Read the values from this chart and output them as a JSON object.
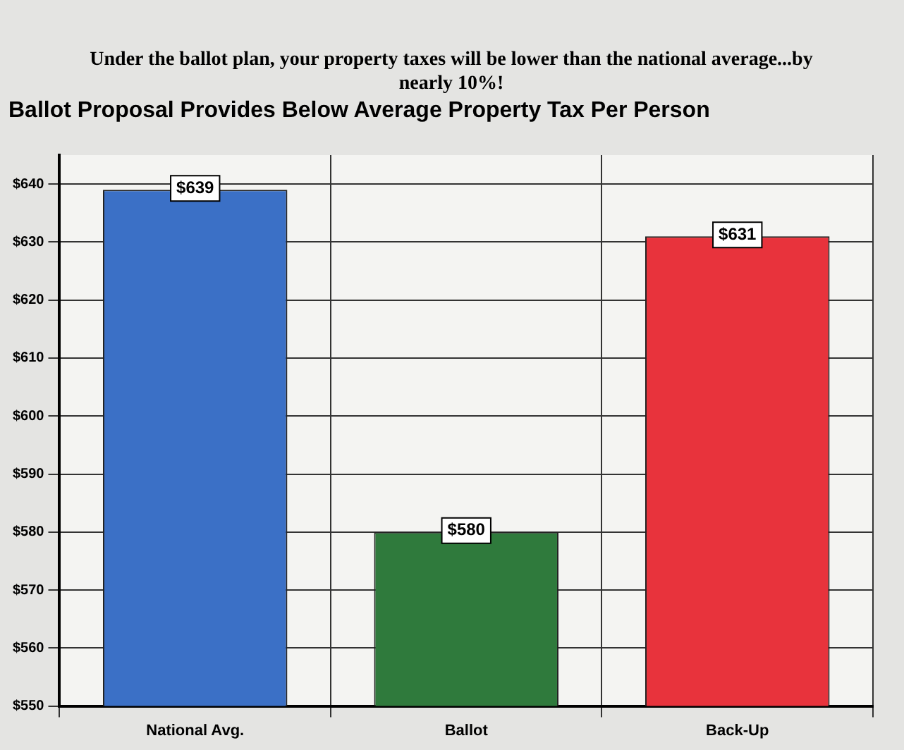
{
  "chart_data": {
    "type": "bar",
    "subtitle": "Under the ballot plan, your property taxes will be lower than the national average...by nearly 10%!",
    "title": "Ballot Proposal Provides Below Average Property Tax Per Person",
    "categories": [
      "National Avg.",
      "Ballot",
      "Back-Up"
    ],
    "values": [
      639,
      580,
      631
    ],
    "colors": [
      "#3b70c6",
      "#2f7a3c",
      "#e8333c"
    ],
    "value_labels": [
      "$639",
      "$580",
      "$631"
    ],
    "ylim": [
      550,
      645
    ],
    "yticks": [
      {
        "value": 550,
        "label": "$550"
      },
      {
        "value": 560,
        "label": "$560"
      },
      {
        "value": 570,
        "label": "$570"
      },
      {
        "value": 580,
        "label": "$580"
      },
      {
        "value": 590,
        "label": "$590"
      },
      {
        "value": 600,
        "label": "$600"
      },
      {
        "value": 610,
        "label": "$610"
      },
      {
        "value": 620,
        "label": "$620"
      },
      {
        "value": 630,
        "label": "$630"
      },
      {
        "value": 640,
        "label": "$640"
      }
    ],
    "grid": true
  }
}
